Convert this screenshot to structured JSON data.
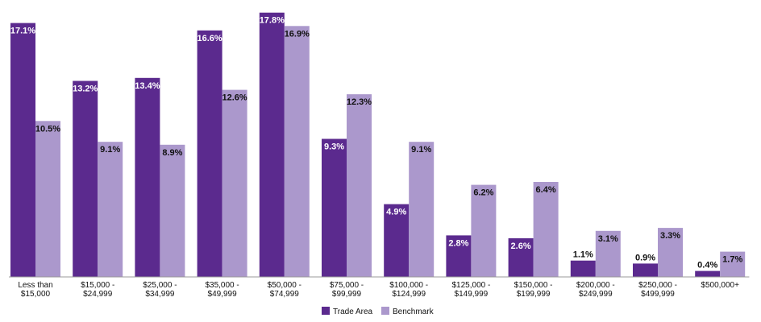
{
  "chart_data": {
    "type": "bar",
    "categories": [
      [
        "Less than",
        "$15,000"
      ],
      [
        "$15,000 -",
        "$24,999"
      ],
      [
        "$25,000 -",
        "$34,999"
      ],
      [
        "$35,000 -",
        "$49,999"
      ],
      [
        "$50,000 -",
        "$74,999"
      ],
      [
        "$75,000 -",
        "$99,999"
      ],
      [
        "$100,000 -",
        "$124,999"
      ],
      [
        "$125,000 -",
        "$149,999"
      ],
      [
        "$150,000 -",
        "$199,999"
      ],
      [
        "$200,000 -",
        "$249,999"
      ],
      [
        "$250,000 -",
        "$499,999"
      ],
      [
        "$500,000+"
      ]
    ],
    "series": [
      {
        "name": "Trade Area",
        "color": "#5b2a8e",
        "values": [
          17.1,
          13.2,
          13.4,
          16.6,
          17.8,
          9.3,
          4.9,
          2.8,
          2.6,
          1.1,
          0.9,
          0.4
        ],
        "labels": [
          "17.1%",
          "13.2%",
          "13.4%",
          "16.6%",
          "17.8%",
          "9.3%",
          "4.9%",
          "2.8%",
          "2.6%",
          "1.1%",
          "0.9%",
          "0.4%"
        ]
      },
      {
        "name": "Benchmark",
        "color": "#ab98cc",
        "values": [
          10.5,
          9.1,
          8.9,
          12.6,
          16.9,
          12.3,
          9.1,
          6.2,
          6.4,
          3.1,
          3.3,
          1.7
        ],
        "labels": [
          "10.5%",
          "9.1%",
          "8.9%",
          "12.6%",
          "16.9%",
          "12.3%",
          "9.1%",
          "6.2%",
          "6.4%",
          "3.1%",
          "3.3%",
          "1.7%"
        ]
      }
    ],
    "title": "",
    "xlabel": "",
    "ylabel": "",
    "ylim": [
      0,
      18
    ],
    "grid": false,
    "legend": "bottom-center"
  }
}
